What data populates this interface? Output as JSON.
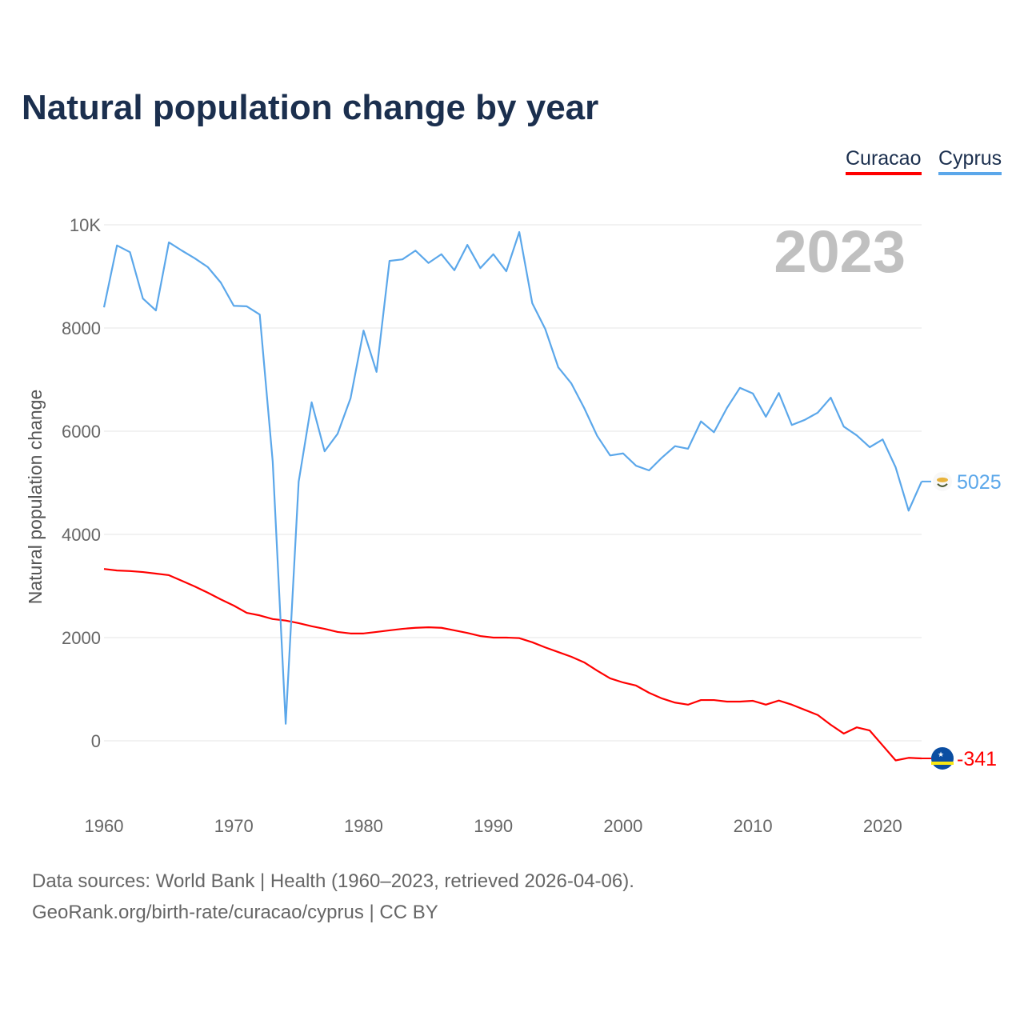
{
  "title": "Natural population change by year",
  "footer": {
    "line1": "Data sources: World Bank | Health (1960–2023, retrieved 2026-04-06).",
    "line2": "GeoRank.org/birth-rate/curacao/cyprus | CC BY"
  },
  "chart_data": {
    "type": "line",
    "title": "Natural population change by year",
    "ylabel": "Natural population change",
    "xlabel": "",
    "xlim": [
      1960,
      2023
    ],
    "ylim": [
      -1000,
      10000
    ],
    "grid": true,
    "legend_position": "top-right",
    "year_label": "2023",
    "x_ticks": [
      1960,
      1970,
      1980,
      1990,
      2000,
      2010,
      2020
    ],
    "y_ticks": [
      {
        "v": 0,
        "label": "0"
      },
      {
        "v": 2000,
        "label": "2000"
      },
      {
        "v": 4000,
        "label": "4000"
      },
      {
        "v": 6000,
        "label": "6000"
      },
      {
        "v": 8000,
        "label": "8000"
      },
      {
        "v": 10000,
        "label": "10K"
      }
    ],
    "x": [
      1960,
      1961,
      1962,
      1963,
      1964,
      1965,
      1966,
      1967,
      1968,
      1969,
      1970,
      1971,
      1972,
      1973,
      1974,
      1975,
      1976,
      1977,
      1978,
      1979,
      1980,
      1981,
      1982,
      1983,
      1984,
      1985,
      1986,
      1987,
      1988,
      1989,
      1990,
      1991,
      1992,
      1993,
      1994,
      1995,
      1996,
      1997,
      1998,
      1999,
      2000,
      2001,
      2002,
      2003,
      2004,
      2005,
      2006,
      2007,
      2008,
      2009,
      2010,
      2011,
      2012,
      2013,
      2014,
      2015,
      2016,
      2017,
      2018,
      2019,
      2020,
      2021,
      2022,
      2023
    ],
    "series": [
      {
        "name": "Curacao",
        "color": "#ff0000",
        "end_label": "-341",
        "values": [
          3330,
          3300,
          3290,
          3270,
          3240,
          3210,
          3100,
          2990,
          2870,
          2740,
          2620,
          2480,
          2430,
          2360,
          2330,
          2280,
          2220,
          2170,
          2110,
          2080,
          2080,
          2110,
          2140,
          2170,
          2190,
          2200,
          2190,
          2140,
          2090,
          2030,
          2000,
          2000,
          1990,
          1910,
          1810,
          1720,
          1630,
          1520,
          1360,
          1210,
          1130,
          1070,
          930,
          820,
          740,
          700,
          790,
          790,
          760,
          760,
          775,
          700,
          780,
          700,
          600,
          500,
          310,
          140,
          260,
          200,
          -90,
          -380,
          -330,
          -341
        ]
      },
      {
        "name": "Cyprus",
        "color": "#5ba7ea",
        "end_label": "5025",
        "values": [
          8400,
          9600,
          9470,
          8570,
          8340,
          9660,
          9500,
          9350,
          9180,
          8880,
          8430,
          8420,
          8260,
          5410,
          330,
          5020,
          6560,
          5610,
          5950,
          6640,
          7950,
          7150,
          9300,
          9330,
          9500,
          9260,
          9430,
          9120,
          9610,
          9160,
          9430,
          9100,
          9860,
          8480,
          7980,
          7240,
          6930,
          6450,
          5910,
          5530,
          5570,
          5330,
          5240,
          5490,
          5710,
          5660,
          6190,
          5980,
          6450,
          6840,
          6730,
          6280,
          6740,
          6120,
          6220,
          6360,
          6650,
          6090,
          5920,
          5690,
          5840,
          5300,
          4460,
          5025
        ]
      }
    ]
  }
}
